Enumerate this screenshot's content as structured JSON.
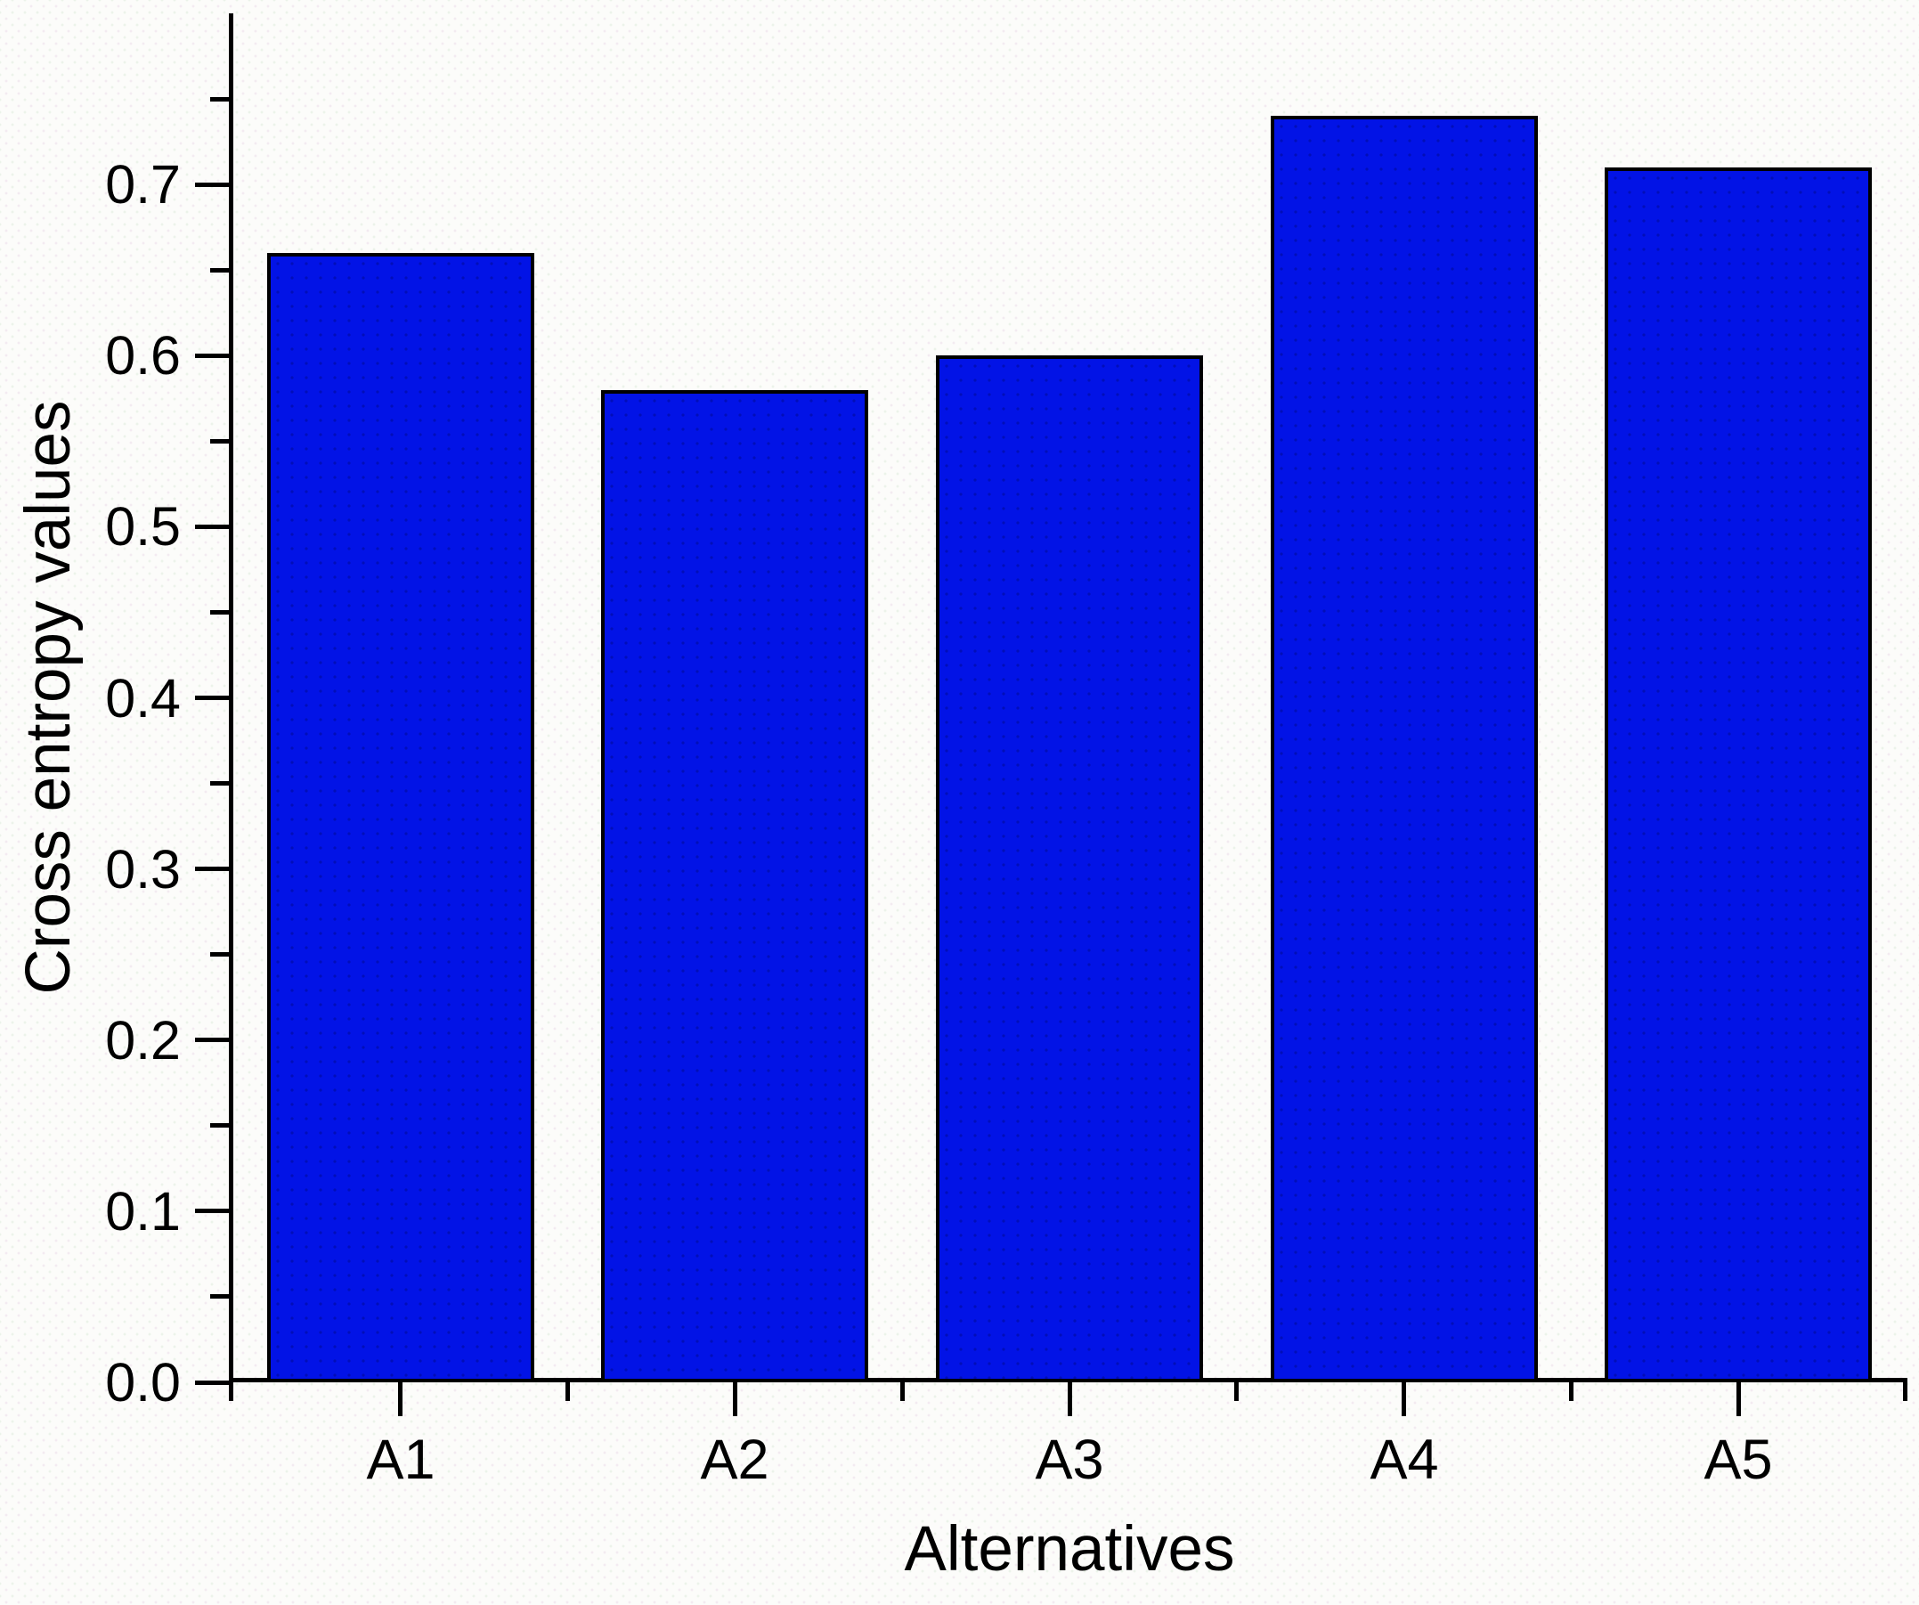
{
  "chart_data": {
    "type": "bar",
    "title": "",
    "xlabel": "Alternatives",
    "ylabel": "Cross entropy values",
    "categories": [
      "A1",
      "A2",
      "A3",
      "A4",
      "A5"
    ],
    "values": [
      0.66,
      0.58,
      0.6,
      0.74,
      0.71
    ],
    "series": [
      {
        "name": "Cross entropy",
        "values": [
          0.66,
          0.58,
          0.6,
          0.74,
          0.71
        ]
      }
    ],
    "y_ticks": [
      {
        "value": 0.0,
        "label": "0.0"
      },
      {
        "value": 0.1,
        "label": "0.1"
      },
      {
        "value": 0.2,
        "label": "0.2"
      },
      {
        "value": 0.3,
        "label": "0.3"
      },
      {
        "value": 0.4,
        "label": "0.4"
      },
      {
        "value": 0.5,
        "label": "0.5"
      },
      {
        "value": 0.6,
        "label": "0.6"
      },
      {
        "value": 0.7,
        "label": "0.7"
      }
    ],
    "y_minor_first": 0.05,
    "y_minor_step": 0.1,
    "ylim": [
      0,
      0.8
    ],
    "grid": false,
    "legend_position": "none",
    "bar_width_fraction": 0.8,
    "colors": {
      "bar_fill": "#0213e6",
      "bar_border": "#000000",
      "axis": "#000000",
      "text": "#000000",
      "background": "#fcfcfa"
    }
  }
}
